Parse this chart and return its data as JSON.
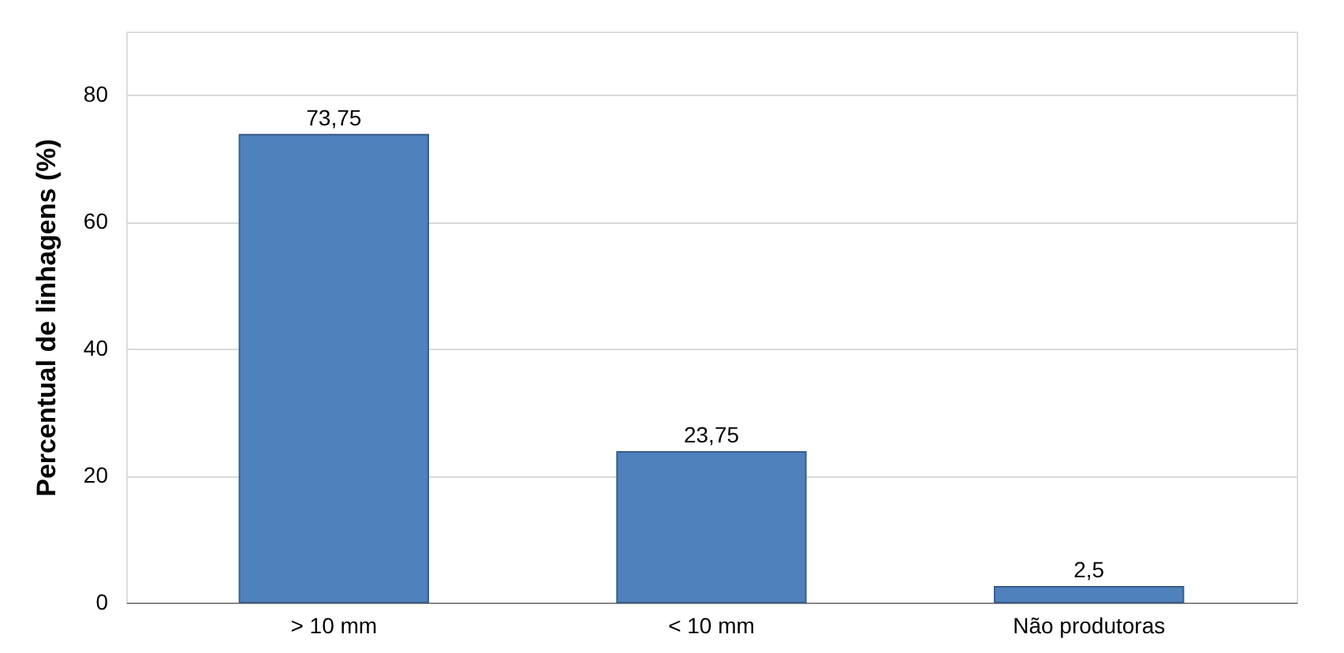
{
  "chart_data": {
    "type": "bar",
    "ylabel": "Percentual de linhagens (%)",
    "categories": [
      "> 10 mm",
      "< 10 mm",
      "Não produtoras"
    ],
    "values": [
      73.75,
      23.75,
      2.5
    ],
    "value_labels": [
      "73,75",
      "23,75",
      "2,5"
    ],
    "color": "#4f81bd",
    "ylim": [
      0,
      90
    ],
    "yticks": [
      0,
      20,
      40,
      60,
      80
    ],
    "grid": "y"
  }
}
